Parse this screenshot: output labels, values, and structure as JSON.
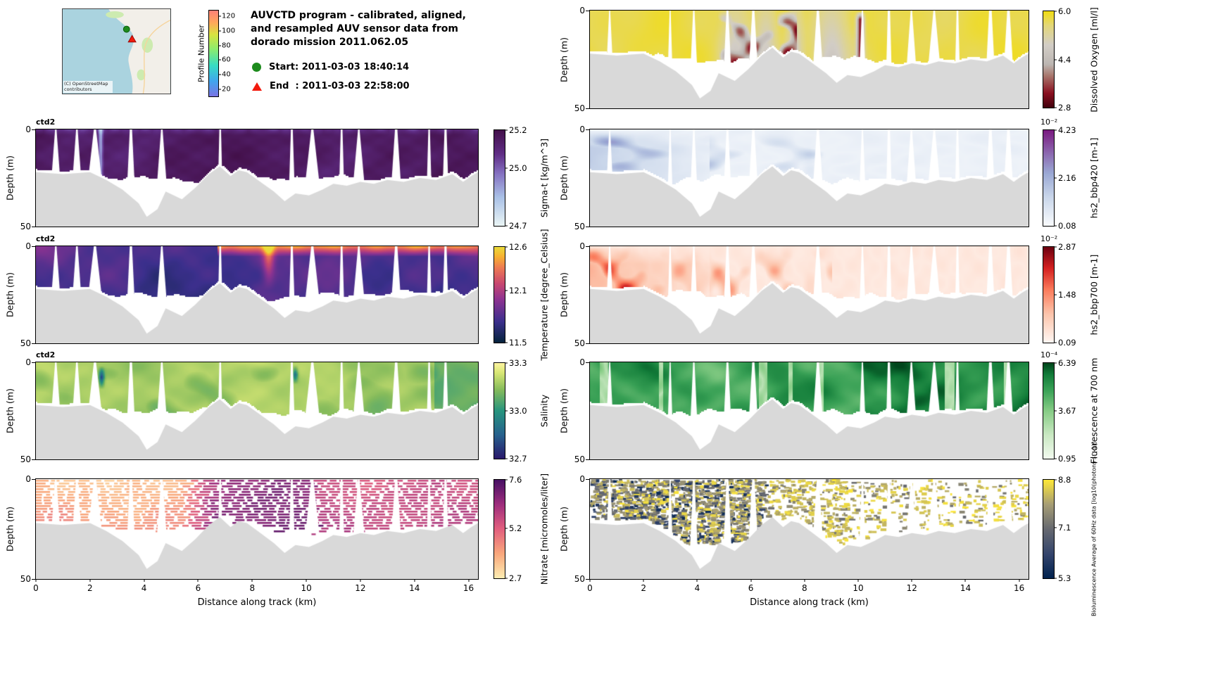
{
  "figure": {
    "bg": "#ffffff",
    "axis_color": "#000000",
    "bathy_color": "#d9d9d9"
  },
  "header": {
    "map": {
      "attribution": "(C) OpenStreetMap contributors",
      "water_color": "#aad3df",
      "land_color": "#f2efe9",
      "green_area_color": "#cdebb0",
      "road_color": "#f6d49c",
      "start_marker_color": "#1d8b1d",
      "end_marker_color": "#f21a0d"
    },
    "profile_bar": {
      "label": "Profile Number",
      "min": 10,
      "max": 128,
      "ticks": [
        "20",
        "40",
        "60",
        "80",
        "100",
        "120"
      ],
      "palette": [
        [
          0,
          "#7a74e4"
        ],
        [
          0.18,
          "#40a6ee"
        ],
        [
          0.36,
          "#37ddc3"
        ],
        [
          0.55,
          "#8cec6e"
        ],
        [
          0.72,
          "#d8e33f"
        ],
        [
          0.86,
          "#ffa75c"
        ],
        [
          1,
          "#ff8178"
        ]
      ]
    },
    "title_lines": [
      "AUVCTD program - calibrated, aligned,",
      "and resampled AUV sensor data from",
      "dorado mission 2011.062.05"
    ],
    "legend": [
      {
        "marker": "circle",
        "color": "#1d8b1d",
        "label": "Start: 2011-03-03 18:40:14"
      },
      {
        "marker": "triangle",
        "color": "#f21a0d",
        "label": "End  : 2011-03-03 22:58:00"
      }
    ]
  },
  "axes": {
    "xlabel": "Distance along track (km)",
    "ylabel": "Depth (m)",
    "x_ticks": [
      "0",
      "2",
      "4",
      "6",
      "8",
      "10",
      "12",
      "14",
      "16"
    ],
    "x_max_km": 16.35,
    "y_ticks": [
      "0",
      "50"
    ],
    "depth_max_m": 50
  },
  "seafloor_profile": [
    [
      0,
      22
    ],
    [
      1,
      23
    ],
    [
      2,
      22
    ],
    [
      2.6,
      26
    ],
    [
      3.2,
      31
    ],
    [
      3.8,
      38
    ],
    [
      4.1,
      45
    ],
    [
      4.5,
      41
    ],
    [
      4.8,
      32
    ],
    [
      5.1,
      34
    ],
    [
      5.4,
      36
    ],
    [
      5.9,
      30
    ],
    [
      6.4,
      23
    ],
    [
      6.8,
      19
    ],
    [
      7.2,
      24
    ],
    [
      7.5,
      21
    ],
    [
      7.8,
      22
    ],
    [
      8.2,
      26
    ],
    [
      8.8,
      32
    ],
    [
      9.2,
      37
    ],
    [
      9.6,
      33
    ],
    [
      10.1,
      34
    ],
    [
      10.6,
      31
    ],
    [
      11,
      28
    ],
    [
      11.5,
      29
    ],
    [
      12,
      27
    ],
    [
      12.5,
      28
    ],
    [
      13,
      26
    ],
    [
      13.6,
      27
    ],
    [
      14.2,
      25
    ],
    [
      14.8,
      26
    ],
    [
      15.4,
      23
    ],
    [
      15.8,
      27
    ],
    [
      16.1,
      24
    ],
    [
      16.35,
      22
    ]
  ],
  "chart_data": [
    {
      "id": "sigma_t",
      "type": "heatmap",
      "panel": "left",
      "row": 0,
      "seed": 101,
      "style": "sigma",
      "corner_label": "ctd2",
      "colorbar": {
        "label": "Sigma-t [kg/m^3]",
        "ticks": [
          "24.7",
          "25.0",
          "25.2"
        ],
        "min": 24.7,
        "max": 25.2,
        "exp": null
      },
      "palette": [
        [
          0,
          "#eaf5f5"
        ],
        [
          0.3,
          "#a9c0e6"
        ],
        [
          0.55,
          "#8470c0"
        ],
        [
          0.75,
          "#5f2d85"
        ],
        [
          1,
          "#43104a"
        ]
      ]
    },
    {
      "id": "temperature",
      "type": "heatmap",
      "panel": "left",
      "row": 1,
      "seed": 202,
      "style": "thermal",
      "corner_label": "ctd2",
      "colorbar": {
        "label": "Temperature [degree_Celsius]",
        "ticks": [
          "11.5",
          "12.1",
          "12.6"
        ],
        "min": 11.5,
        "max": 12.6,
        "exp": null
      },
      "palette": [
        [
          0,
          "#04233b"
        ],
        [
          0.22,
          "#3b2f8c"
        ],
        [
          0.45,
          "#8d3391"
        ],
        [
          0.62,
          "#c9486f"
        ],
        [
          0.78,
          "#ed7953"
        ],
        [
          0.9,
          "#f7b131"
        ],
        [
          1,
          "#eadb3a"
        ]
      ]
    },
    {
      "id": "salinity",
      "type": "heatmap",
      "panel": "left",
      "row": 2,
      "seed": 303,
      "style": "haline",
      "corner_label": "ctd2",
      "colorbar": {
        "label": "Salinity",
        "ticks": [
          "32.7",
          "33.0",
          "33.3"
        ],
        "min": 32.7,
        "max": 33.3,
        "exp": null
      },
      "palette": [
        [
          0,
          "#29186b"
        ],
        [
          0.25,
          "#27618d"
        ],
        [
          0.5,
          "#27947e"
        ],
        [
          0.72,
          "#85bb5b"
        ],
        [
          0.9,
          "#d9e775"
        ],
        [
          1,
          "#fdf4a1"
        ]
      ]
    },
    {
      "id": "nitrate",
      "type": "heatmap",
      "panel": "left",
      "row": 3,
      "seed": 404,
      "style": "matter",
      "has_xaxis": true,
      "colorbar": {
        "label": "Nitrate [micromoles/liter]",
        "ticks": [
          "2.7",
          "5.2",
          "7.6"
        ],
        "min": 2.7,
        "max": 7.6,
        "exp": null
      },
      "palette": [
        [
          0,
          "#fdedb2"
        ],
        [
          0.25,
          "#f9a77c"
        ],
        [
          0.5,
          "#e25f7e"
        ],
        [
          0.75,
          "#9e2d7d"
        ],
        [
          1,
          "#471063"
        ]
      ]
    },
    {
      "id": "dissolved_oxygen",
      "type": "heatmap",
      "panel": "right",
      "row": 0,
      "seed": 505,
      "style": "o2",
      "colorbar": {
        "label": "Dissolved Oxygen [ml/l]",
        "ticks": [
          "2.8",
          "4.4",
          "6.0"
        ],
        "min": 2.8,
        "max": 6.0,
        "exp": null
      },
      "palette": [
        [
          0,
          "#40000d"
        ],
        [
          0.15,
          "#8a1020"
        ],
        [
          0.33,
          "#a8766c"
        ],
        [
          0.45,
          "#bcb6b2"
        ],
        [
          0.65,
          "#d2cdc6"
        ],
        [
          0.85,
          "#e3d77a"
        ],
        [
          1,
          "#f1dc11"
        ]
      ]
    },
    {
      "id": "hs2_bbp420",
      "type": "heatmap",
      "panel": "right",
      "row": 1,
      "seed": 606,
      "style": "bbp",
      "colorbar": {
        "label": "hs2_bbp420 [m-1]",
        "ticks": [
          "0.08",
          "2.16",
          "4.23"
        ],
        "min": 0.08,
        "max": 4.23,
        "exp": "10⁻²"
      },
      "palette": [
        [
          0,
          "#f9fbfd"
        ],
        [
          0.3,
          "#c9d6ea"
        ],
        [
          0.55,
          "#9aa8d4"
        ],
        [
          0.75,
          "#8c6bb1"
        ],
        [
          1,
          "#7a1a80"
        ]
      ]
    },
    {
      "id": "hs2_bbp700",
      "type": "heatmap",
      "panel": "right",
      "row": 2,
      "seed": 707,
      "style": "bbp",
      "colorbar": {
        "label": "hs2_bbp700 [m-1]",
        "ticks": [
          "0.09",
          "1.48",
          "2.87"
        ],
        "min": 0.09,
        "max": 2.87,
        "exp": "10⁻²"
      },
      "palette": [
        [
          0,
          "#fff6f2"
        ],
        [
          0.3,
          "#fcc4ab"
        ],
        [
          0.55,
          "#fb7c5c"
        ],
        [
          0.78,
          "#d32020"
        ],
        [
          1,
          "#6a0010"
        ]
      ]
    },
    {
      "id": "fluorescence_700nm",
      "type": "heatmap",
      "panel": "right",
      "row": 3,
      "seed": 808,
      "style": "greens",
      "colorbar": {
        "label": "Fluorescence at 700 nm",
        "ticks": [
          "0.95",
          "3.67",
          "6.39"
        ],
        "min": 0.95,
        "max": 6.39,
        "exp": "10⁻⁴"
      },
      "palette": [
        [
          0,
          "#f2faef"
        ],
        [
          0.25,
          "#c9e8c2"
        ],
        [
          0.5,
          "#86cc85"
        ],
        [
          0.72,
          "#38a055"
        ],
        [
          0.88,
          "#127c39"
        ],
        [
          1,
          "#00451c"
        ]
      ]
    },
    {
      "id": "bioluminescence",
      "type": "scatter",
      "panel": "right",
      "row": 4,
      "seed": 909,
      "style": "biolum",
      "has_xaxis": true,
      "colorbar": {
        "label": "Bioluminescence Average of 60Hz data [log10(photons s^-1)]",
        "ticks": [
          "5.3",
          "7.1",
          "8.8"
        ],
        "min": 5.3,
        "max": 8.8,
        "exp": null
      },
      "palette": [
        [
          0,
          "#00224e"
        ],
        [
          0.25,
          "#35456c"
        ],
        [
          0.5,
          "#666970"
        ],
        [
          0.75,
          "#a69d75"
        ],
        [
          1,
          "#fee838"
        ]
      ]
    }
  ]
}
